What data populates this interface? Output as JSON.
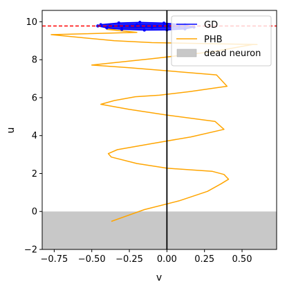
{
  "chart_data": {
    "type": "line",
    "xlabel": "v",
    "ylabel": "u",
    "xlim": [
      -0.83,
      0.73
    ],
    "ylim": [
      -2.0,
      10.6
    ],
    "xticks": [
      -0.75,
      -0.5,
      -0.25,
      0.0,
      0.25,
      0.5
    ],
    "xtick_labels": [
      "−0.75",
      "−0.50",
      "−0.25",
      "0.00",
      "0.25",
      "0.50"
    ],
    "yticks": [
      -2,
      0,
      2,
      4,
      6,
      8,
      10
    ],
    "ytick_labels": [
      "−2",
      "0",
      "2",
      "4",
      "6",
      "8",
      "10"
    ],
    "grid": false,
    "legend": {
      "placement": "top-right",
      "entries": [
        {
          "label": "GD",
          "kind": "line",
          "color": "#0000ff"
        },
        {
          "label": "PHB",
          "kind": "line",
          "color": "#ffa500"
        },
        {
          "label": "dead neuron",
          "kind": "patch",
          "color": "#c8c8c8"
        }
      ]
    },
    "series": [
      {
        "name": "PHB",
        "color": "#ffa500",
        "points": [
          [
            -0.37,
            -0.52
          ],
          [
            -0.15,
            0.1
          ],
          [
            0.08,
            0.56
          ],
          [
            0.27,
            1.06
          ],
          [
            0.36,
            1.46
          ],
          [
            0.41,
            1.7
          ],
          [
            0.38,
            1.95
          ],
          [
            0.3,
            2.12
          ],
          [
            0.0,
            2.28
          ],
          [
            -0.2,
            2.53
          ],
          [
            -0.37,
            2.87
          ],
          [
            -0.39,
            3.05
          ],
          [
            -0.33,
            3.26
          ],
          [
            -0.1,
            3.58
          ],
          [
            0.16,
            3.93
          ],
          [
            0.38,
            4.33
          ],
          [
            0.32,
            4.75
          ],
          [
            0.0,
            5.08
          ],
          [
            -0.25,
            5.38
          ],
          [
            -0.44,
            5.65
          ],
          [
            -0.35,
            5.85
          ],
          [
            -0.21,
            6.05
          ],
          [
            -0.05,
            6.13
          ],
          [
            0.15,
            6.32
          ],
          [
            0.4,
            6.6
          ],
          [
            0.33,
            7.2
          ],
          [
            -0.25,
            7.58
          ],
          [
            -0.5,
            7.72
          ],
          [
            -0.1,
            8.05
          ],
          [
            0.3,
            8.42
          ],
          [
            0.57,
            8.8
          ],
          [
            0.6,
            8.8
          ],
          [
            -0.1,
            8.9
          ],
          [
            -0.35,
            9.0
          ],
          [
            -0.77,
            9.32
          ],
          [
            -0.2,
            9.44
          ],
          [
            -0.4,
            9.6
          ],
          [
            -0.15,
            9.68
          ],
          [
            -0.33,
            9.76
          ],
          [
            -0.17,
            9.82
          ]
        ]
      },
      {
        "name": "GD",
        "color": "#0000ff",
        "points": [
          [
            -0.46,
            9.78
          ],
          [
            -0.4,
            9.68
          ],
          [
            -0.3,
            9.6
          ],
          [
            -0.15,
            9.56
          ],
          [
            0.0,
            9.57
          ],
          [
            0.12,
            9.62
          ],
          [
            0.18,
            9.72
          ],
          [
            0.12,
            9.84
          ],
          [
            -0.02,
            9.93
          ],
          [
            -0.18,
            9.97
          ],
          [
            -0.32,
            9.94
          ],
          [
            -0.44,
            9.85
          ],
          [
            -0.46,
            9.78
          ],
          [
            -0.3,
            9.73
          ],
          [
            -0.1,
            9.71
          ],
          [
            0.08,
            9.75
          ],
          [
            0.0,
            9.82
          ],
          [
            -0.2,
            9.84
          ],
          [
            -0.38,
            9.79
          ],
          [
            -0.2,
            9.76
          ],
          [
            0.0,
            9.78
          ]
        ]
      }
    ],
    "reference_lines": [
      {
        "orientation": "horizontal",
        "y": 9.78,
        "color": "#ff0000",
        "style": "dashed"
      },
      {
        "orientation": "vertical",
        "x": 0.0,
        "color": "#000000",
        "style": "solid"
      }
    ],
    "regions": [
      {
        "label": "dead neuron",
        "y_from": -2.0,
        "y_to": 0.0,
        "color": "#c8c8c8"
      }
    ]
  }
}
